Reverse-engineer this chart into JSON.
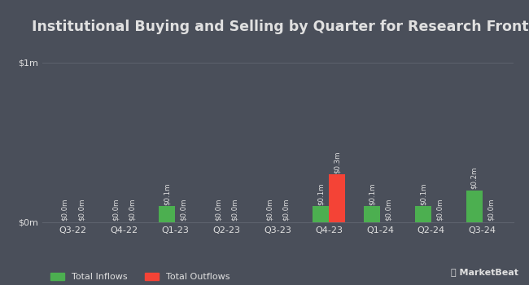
{
  "title": "Institutional Buying and Selling by Quarter for Research Frontiers",
  "quarters": [
    "Q3-22",
    "Q4-22",
    "Q1-23",
    "Q2-23",
    "Q3-23",
    "Q4-23",
    "Q1-24",
    "Q2-24",
    "Q3-24"
  ],
  "inflows": [
    0.0,
    0.0,
    0.1,
    0.0,
    0.0,
    0.1,
    0.1,
    0.1,
    0.2
  ],
  "outflows": [
    0.0,
    0.0,
    0.0,
    0.0,
    0.0,
    0.3,
    0.0,
    0.0,
    0.0
  ],
  "inflow_labels": [
    "$0.0m",
    "$0.0m",
    "$0.1m",
    "$0.0m",
    "$0.0m",
    "$0.1m",
    "$0.1m",
    "$0.1m",
    "$0.2m"
  ],
  "outflow_labels": [
    "$0.0m",
    "$0.0m",
    "$0.0m",
    "$0.0m",
    "$0.0m",
    "$0.3m",
    "$0.0m",
    "$0.0m",
    "$0.0m"
  ],
  "inflow_color": "#4caf50",
  "outflow_color": "#f44336",
  "background_color": "#4a4f5a",
  "text_color": "#e0e0e0",
  "grid_color": "#5d636e",
  "ylim": [
    0,
    1.0
  ],
  "yticks": [
    0,
    1.0
  ],
  "ytick_labels": [
    "$0m",
    "$1m"
  ],
  "bar_width": 0.32,
  "legend_inflow": "Total Inflows",
  "legend_outflow": "Total Outflows",
  "title_fontsize": 12.5,
  "label_fontsize": 6.2,
  "tick_fontsize": 8,
  "legend_fontsize": 8
}
